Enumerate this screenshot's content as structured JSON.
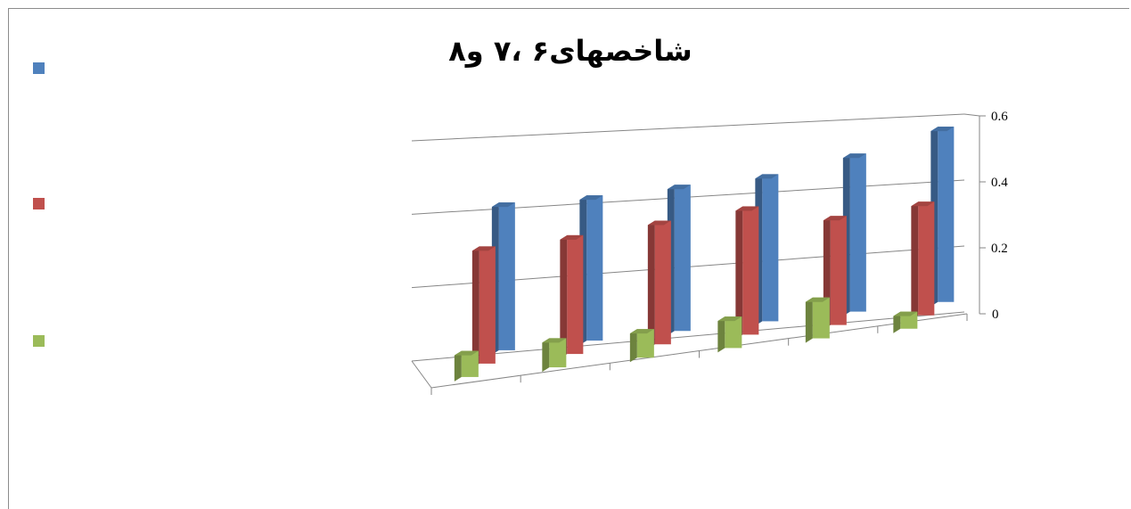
{
  "chart_data": {
    "type": "bar",
    "title": "شاخصهای۶ ،۷ و۸",
    "categories": [
      "",
      "",
      "",
      "",
      "",
      ""
    ],
    "series": [
      {
        "color": "#4f81bd",
        "values": [
          0.41,
          0.41,
          0.42,
          0.43,
          0.47,
          0.53
        ]
      },
      {
        "color": "#c0504d",
        "values": [
          0.33,
          0.34,
          0.36,
          0.38,
          0.33,
          0.35
        ]
      },
      {
        "color": "#9bbb59",
        "values": [
          0.08,
          0.09,
          0.09,
          0.1,
          0.13,
          0.06
        ]
      }
    ],
    "y_ticks": [
      "0",
      "0.2",
      "0.4",
      "0.6"
    ],
    "ylim": [
      0,
      0.6
    ],
    "grid": true,
    "legend_position": "left",
    "view": "3d-clustered-column"
  }
}
